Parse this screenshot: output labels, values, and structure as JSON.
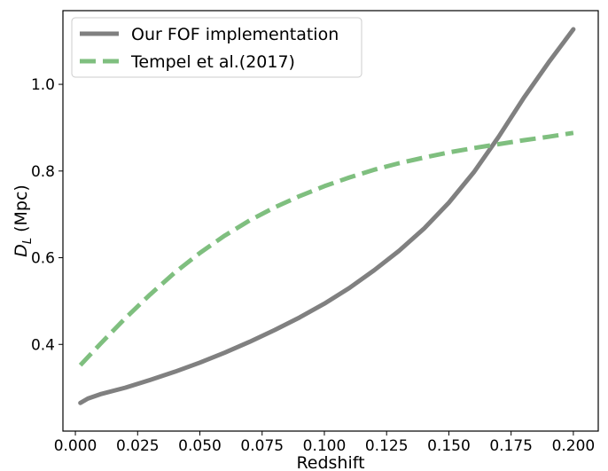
{
  "chart_data": {
    "type": "line",
    "xlabel": "Redshift",
    "ylabel_main": "D",
    "ylabel_sub": "L",
    "ylabel_unit": "(Mpc)",
    "xlim": [
      -0.005,
      0.21
    ],
    "ylim": [
      0.2,
      1.17
    ],
    "x_ticks": [
      0.0,
      0.025,
      0.05,
      0.075,
      0.1,
      0.125,
      0.15,
      0.175,
      0.2
    ],
    "x_tick_labels": [
      "0.000",
      "0.025",
      "0.050",
      "0.075",
      "0.100",
      "0.125",
      "0.150",
      "0.175",
      "0.200"
    ],
    "y_ticks": [
      0.4,
      0.6,
      0.8,
      1.0
    ],
    "y_tick_labels": [
      "0.4",
      "0.6",
      "0.8",
      "1.0"
    ],
    "grid": false,
    "legend_position": "upper-left",
    "series": [
      {
        "name": "Our FOF implementation",
        "color": "#808080",
        "style": "solid",
        "x": [
          0.002,
          0.005,
          0.01,
          0.02,
          0.03,
          0.04,
          0.05,
          0.06,
          0.07,
          0.08,
          0.09,
          0.1,
          0.11,
          0.12,
          0.13,
          0.14,
          0.15,
          0.16,
          0.17,
          0.18,
          0.19,
          0.2
        ],
        "y": [
          0.265,
          0.275,
          0.285,
          0.3,
          0.318,
          0.337,
          0.358,
          0.381,
          0.406,
          0.433,
          0.462,
          0.494,
          0.53,
          0.571,
          0.616,
          0.667,
          0.727,
          0.797,
          0.879,
          0.968,
          1.05,
          1.127
        ]
      },
      {
        "name": "Tempel et al.(2017)",
        "color": "#7fbf7f",
        "style": "dashed",
        "x": [
          0.002,
          0.01,
          0.02,
          0.03,
          0.04,
          0.05,
          0.06,
          0.07,
          0.08,
          0.09,
          0.1,
          0.11,
          0.12,
          0.13,
          0.14,
          0.15,
          0.16,
          0.17,
          0.18,
          0.19,
          0.2
        ],
        "y": [
          0.352,
          0.401,
          0.46,
          0.515,
          0.566,
          0.611,
          0.651,
          0.686,
          0.716,
          0.742,
          0.765,
          0.785,
          0.803,
          0.818,
          0.831,
          0.843,
          0.853,
          0.862,
          0.871,
          0.879,
          0.888
        ]
      }
    ]
  }
}
